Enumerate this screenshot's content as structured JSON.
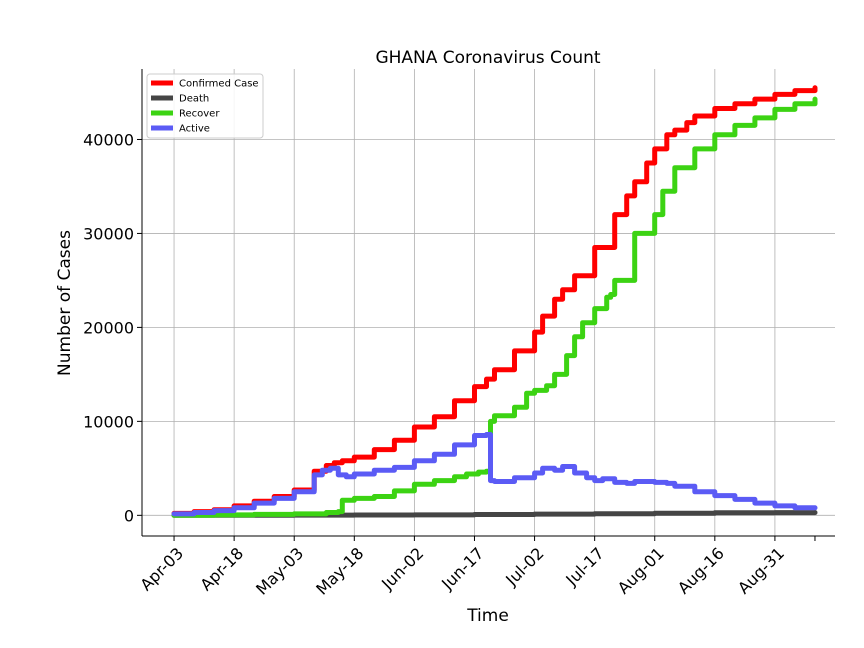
{
  "chart_data": {
    "type": "line",
    "title": "GHANA Coronavirus Count",
    "xlabel": "Time",
    "ylabel": "Number of Cases",
    "x_tick_labels": [
      "Apr-03",
      "Apr-18",
      "May-03",
      "May-18",
      "Jun-02",
      "Jun-17",
      "Jul-02",
      "Jul-17",
      "Aug-01",
      "Aug-16",
      "Aug-31"
    ],
    "x_tick_days": [
      0,
      15,
      30,
      45,
      60,
      75,
      90,
      105,
      120,
      135,
      150
    ],
    "y_ticks": [
      0,
      10000,
      20000,
      30000,
      40000
    ],
    "y_tick_labels": [
      "0",
      "10000",
      "20000",
      "30000",
      "40000"
    ],
    "xlim_days": [
      -8,
      165
    ],
    "ylim": [
      -2200,
      47500
    ],
    "grid": true,
    "legend_position": "top-left",
    "x_unit": "days after Apr-03",
    "series": [
      {
        "name": "Confirmed Case",
        "color": "#ff0000",
        "x": [
          0,
          5,
          10,
          15,
          20,
          25,
          30,
          35,
          38,
          40,
          42,
          45,
          50,
          55,
          60,
          65,
          70,
          75,
          78,
          80,
          85,
          90,
          92,
          95,
          97,
          100,
          105,
          110,
          113,
          115,
          118,
          120,
          123,
          125,
          128,
          130,
          135,
          140,
          145,
          150,
          155,
          160
        ],
        "y": [
          200,
          400,
          600,
          1000,
          1500,
          2000,
          2700,
          4700,
          5300,
          5600,
          5800,
          6200,
          7000,
          8000,
          9400,
          10500,
          12200,
          13700,
          14500,
          15500,
          17500,
          19500,
          21200,
          23000,
          24000,
          25500,
          28500,
          32000,
          34000,
          35500,
          37500,
          39000,
          40500,
          41000,
          41800,
          42500,
          43300,
          43800,
          44300,
          44800,
          45200,
          45500
        ]
      },
      {
        "name": "Death",
        "color": "#454545",
        "x": [
          0,
          15,
          30,
          45,
          60,
          75,
          90,
          105,
          120,
          135,
          150,
          160
        ],
        "y": [
          5,
          10,
          20,
          30,
          45,
          90,
          130,
          170,
          220,
          270,
          290,
          300
        ]
      },
      {
        "name": "Recover",
        "color": "#3cd313",
        "x": [
          0,
          10,
          20,
          30,
          38,
          41,
          42,
          45,
          50,
          55,
          60,
          65,
          70,
          73,
          76,
          78,
          79,
          80,
          85,
          88,
          90,
          93,
          95,
          98,
          100,
          102,
          105,
          108,
          109,
          110,
          115,
          120,
          122,
          125,
          130,
          135,
          140,
          145,
          150,
          155,
          160
        ],
        "y": [
          0,
          50,
          100,
          150,
          300,
          400,
          1600,
          1800,
          2000,
          2600,
          3300,
          3700,
          4100,
          4400,
          4600,
          4700,
          10000,
          10600,
          11500,
          13000,
          13300,
          13800,
          15000,
          17000,
          19000,
          20500,
          22000,
          23200,
          23500,
          25000,
          30000,
          32000,
          34500,
          37000,
          39000,
          40500,
          41500,
          42300,
          43200,
          43800,
          44300
        ]
      },
      {
        "name": "Active",
        "color": "#5b5bf5",
        "x": [
          0,
          5,
          10,
          15,
          20,
          25,
          30,
          35,
          37,
          39,
          41,
          43,
          45,
          50,
          55,
          60,
          65,
          70,
          75,
          78,
          79,
          80,
          85,
          90,
          92,
          95,
          97,
          100,
          103,
          105,
          107,
          110,
          113,
          115,
          120,
          123,
          125,
          130,
          135,
          140,
          145,
          150,
          155,
          160
        ],
        "y": [
          150,
          300,
          500,
          800,
          1300,
          1800,
          2500,
          4300,
          4800,
          5000,
          4300,
          4100,
          4400,
          4800,
          5100,
          5800,
          6500,
          7500,
          8500,
          8600,
          3700,
          3600,
          4000,
          4500,
          5000,
          4800,
          5200,
          4500,
          4000,
          3700,
          3900,
          3500,
          3400,
          3600,
          3500,
          3400,
          3100,
          2500,
          2100,
          1700,
          1300,
          1000,
          800,
          800
        ]
      }
    ]
  }
}
